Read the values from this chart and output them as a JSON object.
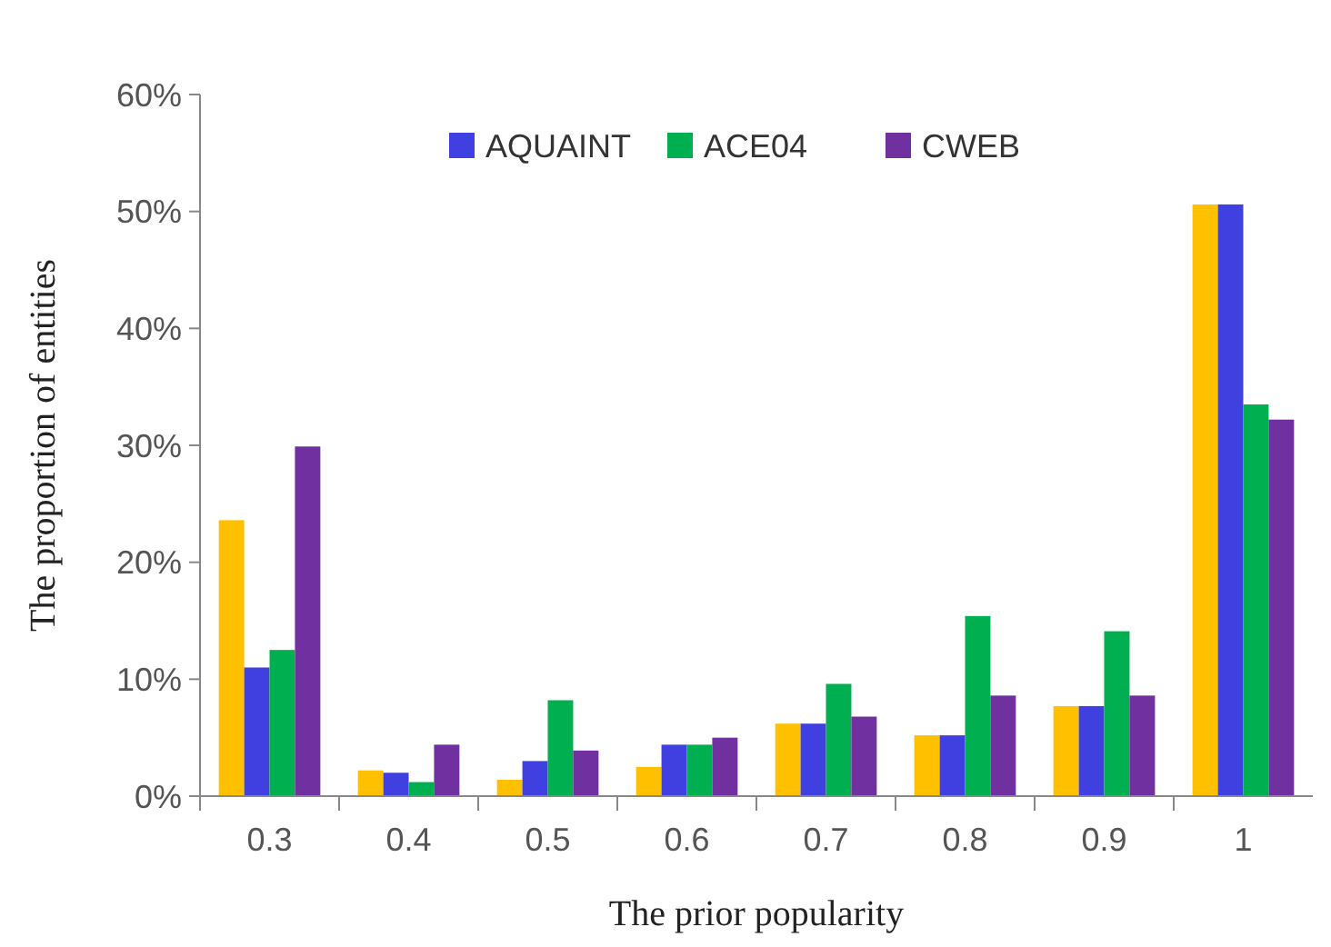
{
  "chart_data": {
    "type": "bar",
    "xlabel": "The prior popularity",
    "ylabel": "The proportion of entities",
    "categories": [
      "0.3",
      "0.4",
      "0.5",
      "0.6",
      "0.7",
      "0.8",
      "0.9",
      "1"
    ],
    "series": [
      {
        "color": "#ffc000",
        "values": [
          23.6,
          2.2,
          1.4,
          2.5,
          6.2,
          5.2,
          7.7,
          50.6
        ]
      },
      {
        "name": "AQUAINT",
        "color": "#4040e0",
        "values": [
          11.0,
          2.0,
          3.0,
          4.4,
          6.2,
          5.2,
          7.7,
          50.6
        ]
      },
      {
        "name": "ACE04",
        "color": "#00b050",
        "values": [
          12.5,
          1.2,
          8.2,
          4.4,
          9.6,
          15.4,
          14.1,
          33.5
        ]
      },
      {
        "name": "CWEB",
        "color": "#7030a0",
        "values": [
          29.9,
          4.4,
          3.9,
          5.0,
          6.8,
          8.6,
          8.6,
          32.2
        ]
      }
    ],
    "ylim": [
      0,
      60
    ],
    "yticks": [
      {
        "value": 0,
        "label": "0%"
      },
      {
        "value": 10,
        "label": "10%"
      },
      {
        "value": 20,
        "label": "20%"
      },
      {
        "value": 30,
        "label": "30%"
      },
      {
        "value": 40,
        "label": "40%"
      },
      {
        "value": 50,
        "label": "50%"
      },
      {
        "value": 60,
        "label": "60%"
      }
    ],
    "grid": false,
    "legend": "top"
  }
}
